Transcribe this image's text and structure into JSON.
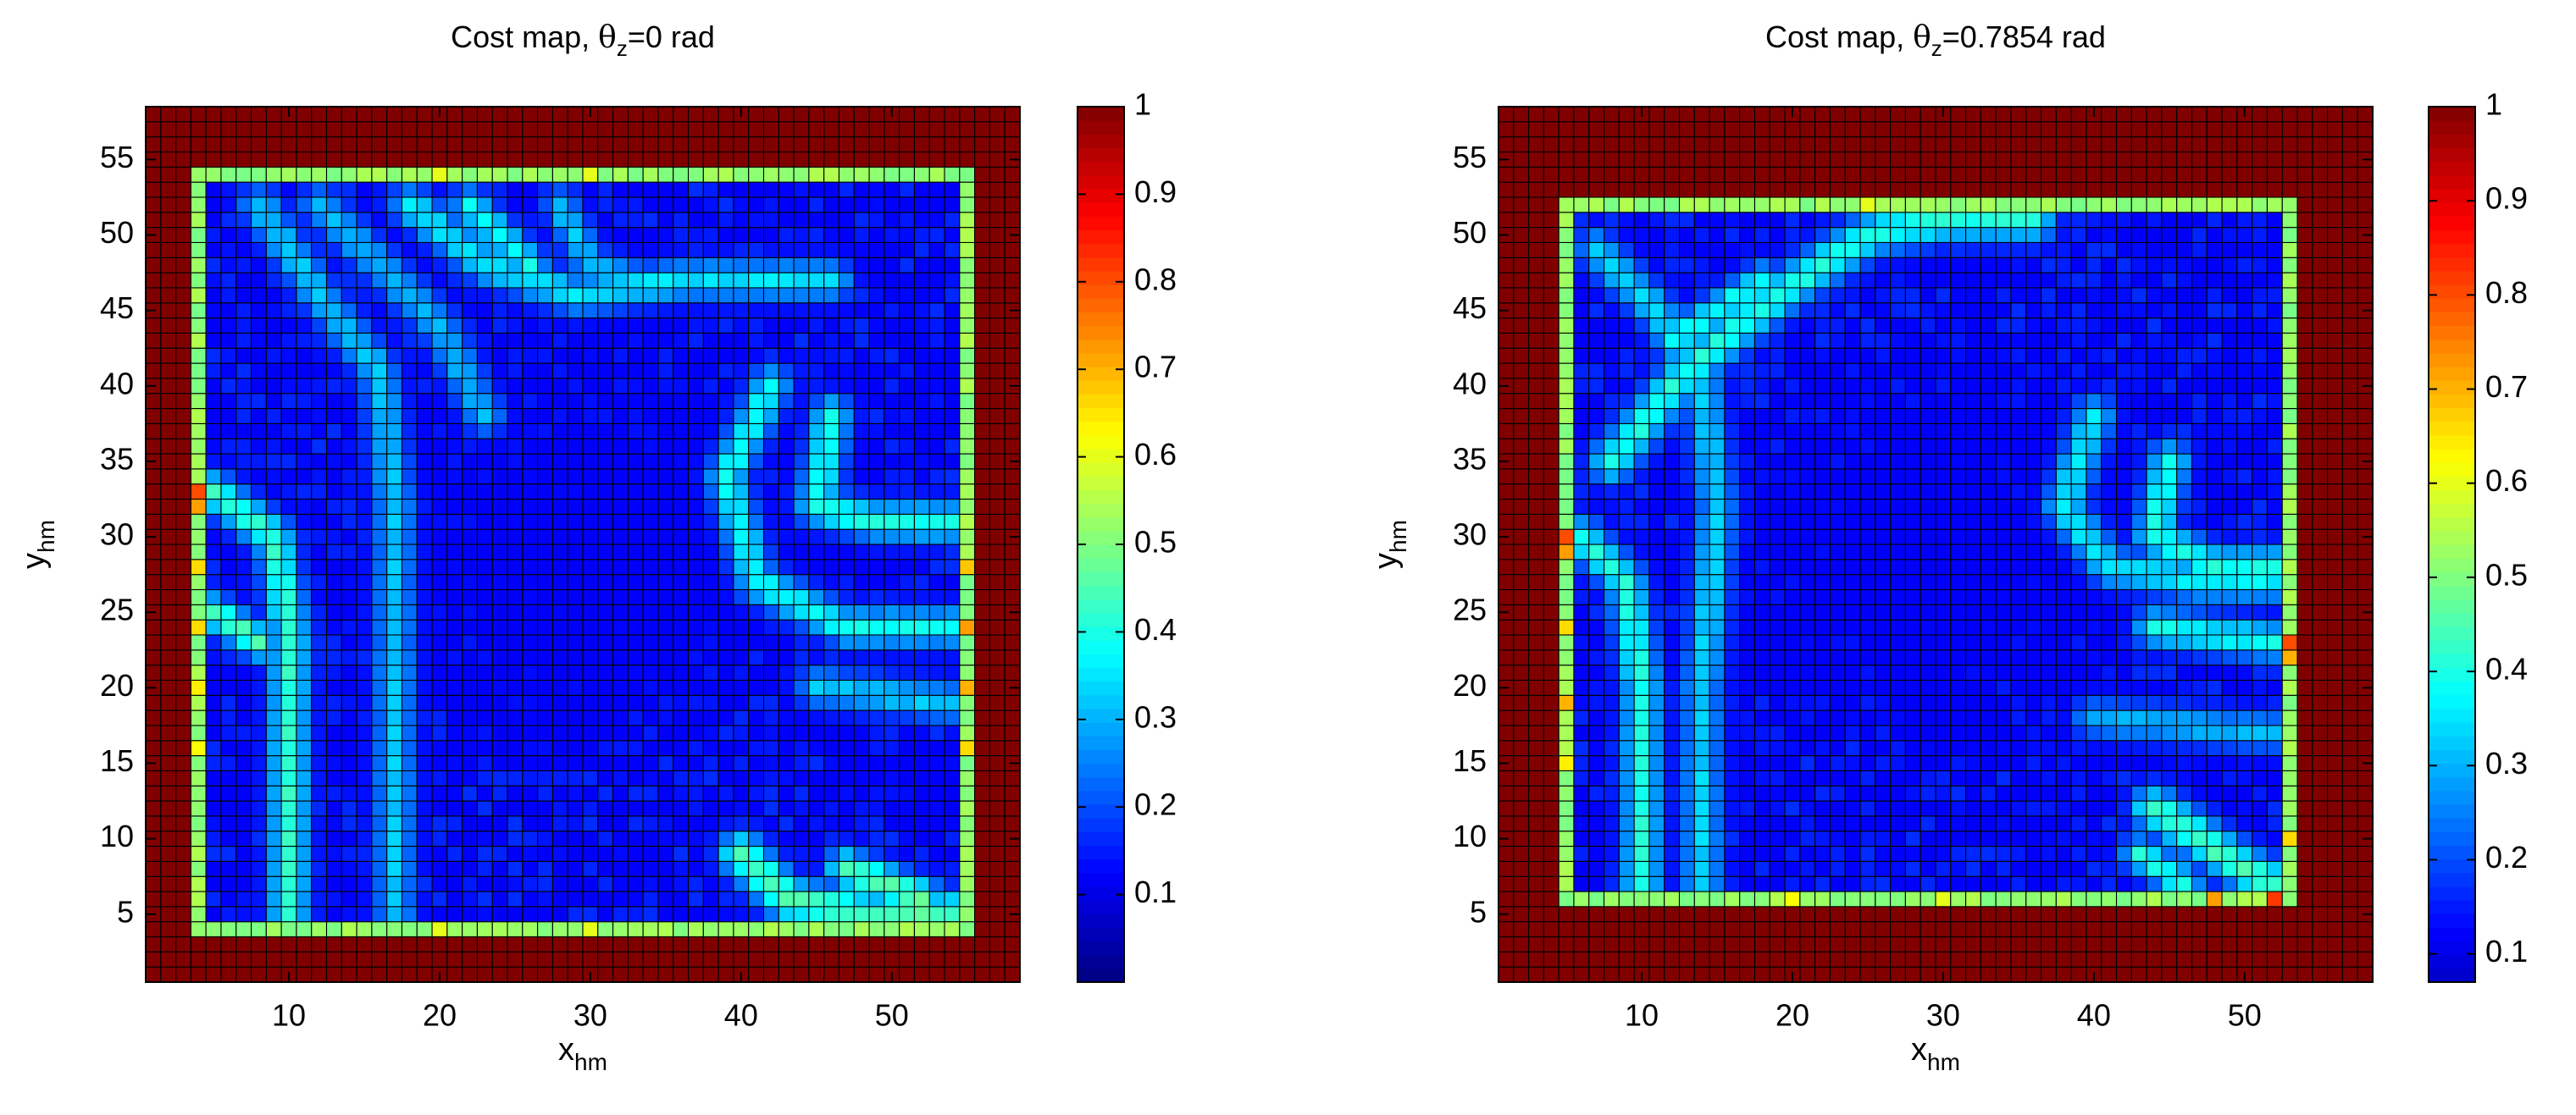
{
  "chart_data": [
    {
      "type": "heatmap",
      "title": {
        "main": "Cost map, ",
        "theta": "θ",
        "sub": "z",
        "value": "=0 rad"
      },
      "xlabel": {
        "main": "x",
        "sub": "hm"
      },
      "ylabel": {
        "main": "y",
        "sub": "hm"
      },
      "x_range": [
        1,
        58
      ],
      "y_range": [
        1,
        58
      ],
      "x_ticks": [
        10,
        20,
        30,
        40,
        50
      ],
      "y_ticks": [
        5,
        10,
        15,
        20,
        25,
        30,
        35,
        40,
        45,
        50,
        55
      ],
      "grid": "cell edges",
      "colormap": "jet",
      "colorbar": {
        "min": 0,
        "max": 1,
        "ticks": [
          0.1,
          0.2,
          0.3,
          0.4,
          0.5,
          0.6,
          0.7,
          0.8,
          0.9,
          1
        ]
      },
      "outer_band_value": 1.0,
      "inner_wall": {
        "x": [
          4,
          55
        ],
        "y": [
          4,
          54
        ],
        "value": 0.52
      },
      "wall_hot_spots": [
        {
          "x": 4,
          "y": 33,
          "value": 0.8
        },
        {
          "x": 4,
          "y": 32,
          "value": 0.72
        },
        {
          "x": 4,
          "y": 28,
          "value": 0.66
        },
        {
          "x": 4,
          "y": 24,
          "value": 0.66
        },
        {
          "x": 4,
          "y": 20,
          "value": 0.64
        },
        {
          "x": 4,
          "y": 16,
          "value": 0.62
        },
        {
          "x": 55,
          "y": 28,
          "value": 0.68
        },
        {
          "x": 55,
          "y": 24,
          "value": 0.72
        },
        {
          "x": 55,
          "y": 20,
          "value": 0.7
        },
        {
          "x": 55,
          "y": 16,
          "value": 0.66
        },
        {
          "x": 20,
          "y": 54,
          "value": 0.6
        },
        {
          "x": 30,
          "y": 54,
          "value": 0.6
        },
        {
          "x": 20,
          "y": 4,
          "value": 0.6
        },
        {
          "x": 30,
          "y": 4,
          "value": 0.6
        }
      ],
      "interior_base": 0.12,
      "features": [
        {
          "points": [
            [
              8,
              52
            ],
            [
              12,
              46
            ],
            [
              16,
              41
            ],
            [
              17,
              32
            ],
            [
              17,
              20
            ],
            [
              17,
              5
            ]
          ],
          "peak": 0.32,
          "width": 0.9
        },
        {
          "points": [
            [
              12,
              52
            ],
            [
              16,
              48
            ],
            [
              20,
              44
            ],
            [
              23,
              38
            ]
          ],
          "peak": 0.3,
          "width": 0.9
        },
        {
          "points": [
            [
              5,
              33
            ],
            [
              9,
              30
            ],
            [
              10,
              24
            ],
            [
              10,
              15
            ],
            [
              10,
              5
            ]
          ],
          "peak": 0.42,
          "width": 0.9
        },
        {
          "points": [
            [
              5,
              25
            ],
            [
              8,
              23
            ]
          ],
          "peak": 0.45,
          "width": 0.8
        },
        {
          "points": [
            [
              18,
              52
            ],
            [
              23,
              48
            ],
            [
              29,
              46
            ],
            [
              36,
              47
            ],
            [
              46,
              47
            ]
          ],
          "peak": 0.35,
          "width": 0.9
        },
        {
          "points": [
            [
              22,
              52
            ],
            [
              26,
              48
            ]
          ],
          "peak": 0.38,
          "width": 0.8
        },
        {
          "points": [
            [
              28,
              52
            ],
            [
              30,
              48
            ],
            [
              33,
              47
            ]
          ],
          "peak": 0.32,
          "width": 0.8
        },
        {
          "points": [
            [
              42,
              40
            ],
            [
              39,
              34
            ],
            [
              41,
              27
            ],
            [
              47,
              24
            ],
            [
              54,
              24
            ]
          ],
          "peak": 0.38,
          "width": 0.9
        },
        {
          "points": [
            [
              46,
              38
            ],
            [
              45,
              32
            ],
            [
              49,
              31
            ],
            [
              54,
              31
            ]
          ],
          "peak": 0.4,
          "width": 0.9
        },
        {
          "points": [
            [
              45,
              20
            ],
            [
              54,
              19
            ]
          ],
          "peak": 0.32,
          "width": 0.9
        },
        {
          "points": [
            [
              40,
              9
            ],
            [
              43,
              6
            ],
            [
              48,
              5
            ],
            [
              54,
              5
            ]
          ],
          "peak": 0.45,
          "width": 1.0
        },
        {
          "points": [
            [
              47,
              8
            ],
            [
              52,
              6
            ]
          ],
          "peak": 0.46,
          "width": 0.9
        }
      ]
    },
    {
      "type": "heatmap",
      "title": {
        "main": "Cost map, ",
        "theta": "θ",
        "sub": "z",
        "value": "=0.7854 rad"
      },
      "xlabel": {
        "main": "x",
        "sub": "hm"
      },
      "ylabel": {
        "main": "y",
        "sub": "hm"
      },
      "x_range": [
        1,
        58
      ],
      "y_range": [
        1,
        58
      ],
      "x_ticks": [
        10,
        20,
        30,
        40,
        50
      ],
      "y_ticks": [
        5,
        10,
        15,
        20,
        25,
        30,
        35,
        40,
        45,
        50,
        55
      ],
      "grid": "cell edges",
      "colormap": "jet",
      "colorbar": {
        "min": 0.07,
        "max": 1,
        "ticks": [
          0.1,
          0.2,
          0.3,
          0.4,
          0.5,
          0.6,
          0.7,
          0.8,
          0.9,
          1
        ]
      },
      "outer_band_value": 1.0,
      "inner_wall": {
        "x": [
          5,
          53
        ],
        "y": [
          6,
          52
        ],
        "value": 0.52
      },
      "wall_hot_spots": [
        {
          "x": 5,
          "y": 30,
          "value": 0.8
        },
        {
          "x": 5,
          "y": 29,
          "value": 0.72
        },
        {
          "x": 5,
          "y": 24,
          "value": 0.66
        },
        {
          "x": 5,
          "y": 19,
          "value": 0.7
        },
        {
          "x": 5,
          "y": 15,
          "value": 0.64
        },
        {
          "x": 53,
          "y": 23,
          "value": 0.8
        },
        {
          "x": 53,
          "y": 22,
          "value": 0.7
        },
        {
          "x": 53,
          "y": 10,
          "value": 0.66
        },
        {
          "x": 52,
          "y": 6,
          "value": 0.82
        },
        {
          "x": 48,
          "y": 6,
          "value": 0.72
        },
        {
          "x": 50,
          "y": 7,
          "value": 0.7
        },
        {
          "x": 20,
          "y": 6,
          "value": 0.62
        },
        {
          "x": 30,
          "y": 6,
          "value": 0.6
        },
        {
          "x": 25,
          "y": 52,
          "value": 0.6
        }
      ],
      "interior_base": 0.12,
      "features": [
        {
          "points": [
            [
              7,
              49
            ],
            [
              11,
              45
            ],
            [
              14,
              40
            ],
            [
              15,
              32
            ],
            [
              14,
              20
            ],
            [
              14,
              7
            ]
          ],
          "peak": 0.33,
          "width": 0.9
        },
        {
          "points": [
            [
              6,
              30
            ],
            [
              9,
              27
            ],
            [
              10,
              20
            ],
            [
              10,
              7
            ]
          ],
          "peak": 0.4,
          "width": 0.9
        },
        {
          "points": [
            [
              8,
              35
            ],
            [
              13,
              41
            ],
            [
              19,
              46
            ],
            [
              25,
              50
            ],
            [
              30,
              51
            ],
            [
              36,
              51
            ]
          ],
          "peak": 0.4,
          "width": 1.0
        },
        {
          "points": [
            [
              12,
              43
            ],
            [
              18,
              47
            ]
          ],
          "peak": 0.38,
          "width": 0.8
        },
        {
          "points": [
            [
              40,
              38
            ],
            [
              38,
              32
            ],
            [
              41,
              28
            ],
            [
              47,
              27
            ],
            [
              52,
              27
            ]
          ],
          "peak": 0.36,
          "width": 0.9
        },
        {
          "points": [
            [
              45,
              35
            ],
            [
              44,
              30
            ],
            [
              48,
              28
            ],
            [
              52,
              28
            ]
          ],
          "peak": 0.4,
          "width": 0.9
        },
        {
          "points": [
            [
              44,
              24
            ],
            [
              52,
              23
            ]
          ],
          "peak": 0.38,
          "width": 0.9
        },
        {
          "points": [
            [
              40,
              18
            ],
            [
              52,
              17
            ]
          ],
          "peak": 0.3,
          "width": 0.9
        },
        {
          "points": [
            [
              44,
              12
            ],
            [
              47,
              10
            ],
            [
              50,
              8
            ],
            [
              52,
              7
            ]
          ],
          "peak": 0.44,
          "width": 1.0
        },
        {
          "points": [
            [
              43,
              9
            ],
            [
              46,
              7
            ]
          ],
          "peak": 0.4,
          "width": 0.8
        }
      ]
    }
  ]
}
